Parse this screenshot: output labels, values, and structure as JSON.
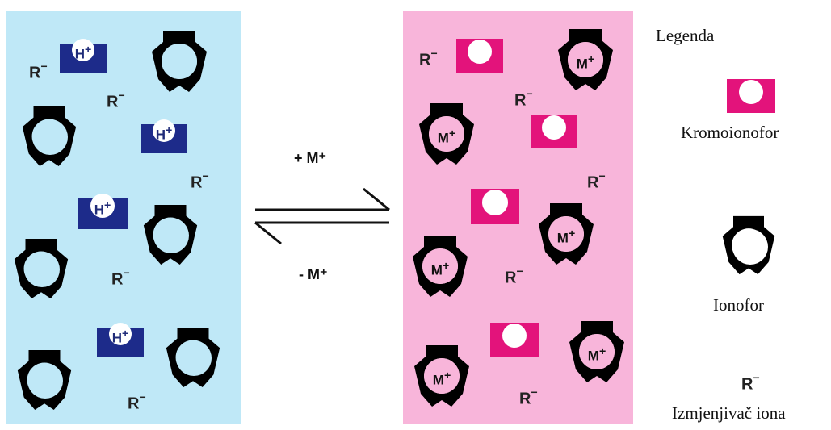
{
  "colors": {
    "left_panel": "#bfe8f7",
    "right_panel": "#f8b5da",
    "proton_carrier": "#1d2b8a",
    "chromoionophore": "#e3137b",
    "ionophore": "#000000"
  },
  "labels": {
    "proton": "H+",
    "proton_base": "H",
    "proton_sup": "+",
    "metal_base": "M",
    "metal_sup": "+",
    "exchanger_base": "R",
    "exchanger_sup": "−"
  },
  "arrows": {
    "forward": "+ M⁺",
    "reverse": "- M⁺"
  },
  "legend": {
    "title": "Legenda",
    "chromoionophore_label": "Kromoionofor",
    "ionophore_label": "Ionofor",
    "exchanger_symbol_base": "R",
    "exchanger_symbol_sup": "−",
    "exchanger_label": "Izmjenjivač iona"
  }
}
